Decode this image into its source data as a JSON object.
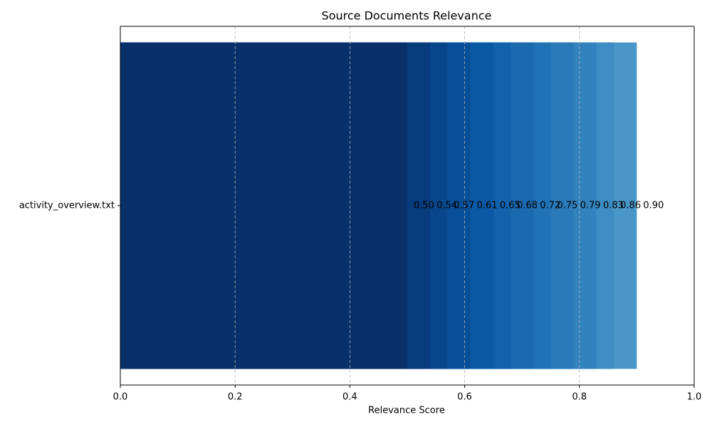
{
  "chart_data": {
    "type": "barh",
    "title": "Source Documents Relevance",
    "xlabel": "Relevance Score",
    "categories": [
      "activity_overview.txt"
    ],
    "series": [
      {
        "color": "#08306b",
        "values": [
          0.5
        ],
        "value_labels": [
          "0.50"
        ]
      },
      {
        "color": "#083b7c",
        "values": [
          0.54
        ],
        "value_labels": [
          "0.54"
        ]
      },
      {
        "color": "#08468b",
        "values": [
          0.57
        ],
        "value_labels": [
          "0.57"
        ]
      },
      {
        "color": "#084f99",
        "values": [
          0.61
        ],
        "value_labels": [
          "0.61"
        ]
      },
      {
        "color": "#0b58a4",
        "values": [
          0.65
        ],
        "value_labels": [
          "0.65"
        ]
      },
      {
        "color": "#1361aa",
        "values": [
          0.68
        ],
        "value_labels": [
          "0.68"
        ]
      },
      {
        "color": "#1b69af",
        "values": [
          0.72
        ],
        "value_labels": [
          "0.72"
        ]
      },
      {
        "color": "#2171b5",
        "values": [
          0.75
        ],
        "value_labels": [
          "0.75"
        ]
      },
      {
        "color": "#2a7aba",
        "values": [
          0.79
        ],
        "value_labels": [
          "0.79"
        ]
      },
      {
        "color": "#3282be",
        "values": [
          0.83
        ],
        "value_labels": [
          "0.83"
        ]
      },
      {
        "color": "#3d8dc4",
        "values": [
          0.86
        ],
        "value_labels": [
          "0.86"
        ]
      },
      {
        "color": "#4997c9",
        "values": [
          0.9
        ],
        "value_labels": [
          "0.90"
        ]
      }
    ],
    "xlim": [
      0,
      1
    ],
    "xticks": [
      {
        "value": 0,
        "label": "0.0"
      },
      0.2,
      0.4,
      0.6,
      0.8,
      {
        "value": 1,
        "label": "1.0"
      }
    ],
    "grid": true
  }
}
